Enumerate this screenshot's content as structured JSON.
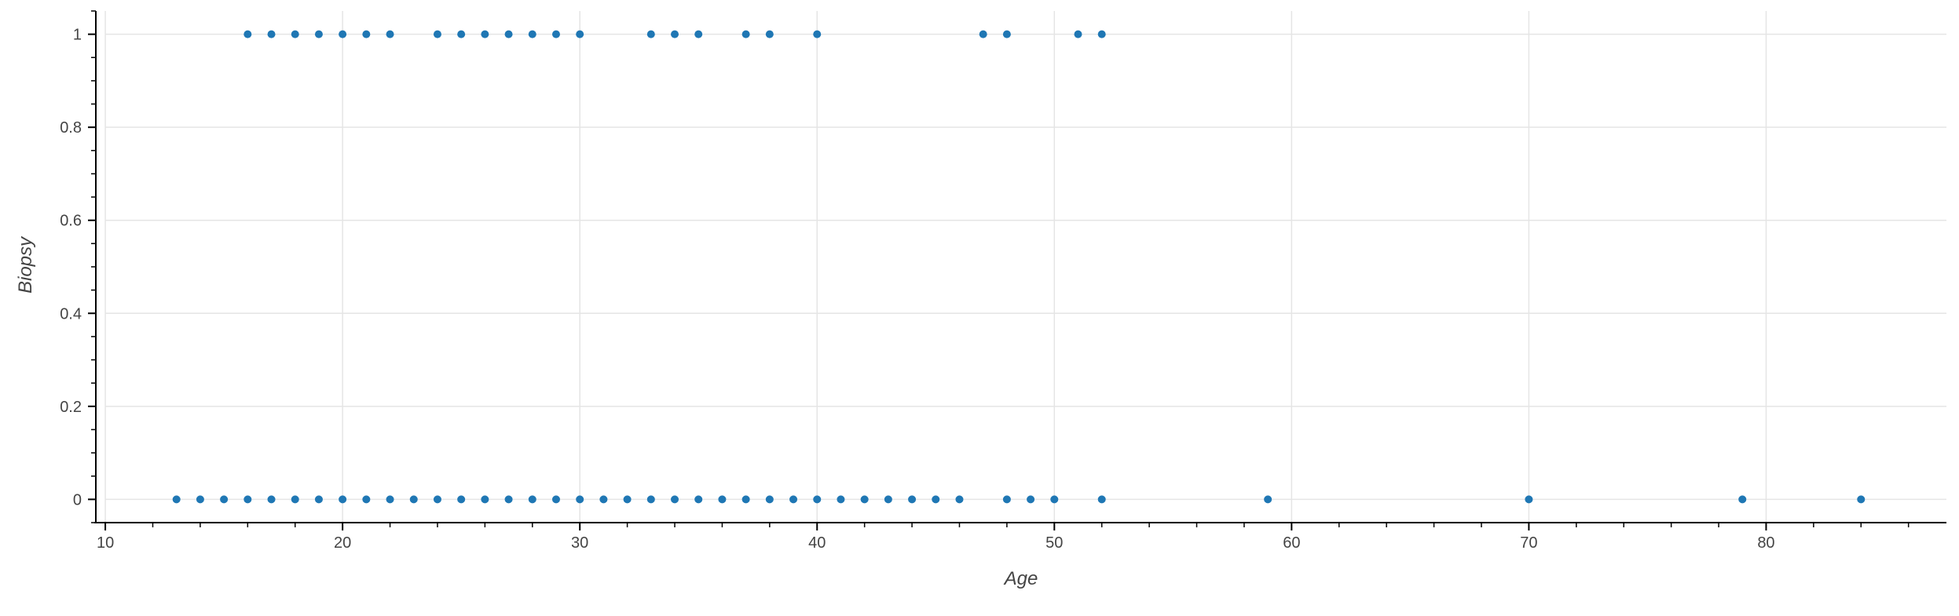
{
  "chart_data": {
    "type": "scatter",
    "title": "",
    "xlabel": "Age",
    "ylabel": "Biopsy",
    "xlim": [
      9.6,
      87.6
    ],
    "ylim": [
      -0.05,
      1.05
    ],
    "x_ticks": [
      10,
      20,
      30,
      40,
      50,
      60,
      70,
      80
    ],
    "x_tick_labels": [
      "10",
      "20",
      "30",
      "40",
      "50",
      "60",
      "70",
      "80"
    ],
    "y_ticks": [
      0,
      0.2,
      0.4,
      0.6,
      0.8,
      1
    ],
    "y_tick_labels": [
      "0",
      "0.2",
      "0.4",
      "0.6",
      "0.8",
      "1"
    ],
    "grid": true,
    "legend": "none",
    "colors": {
      "point": "#1f77b4",
      "grid": "#e5e5e5",
      "axis": "#000000"
    },
    "series": [
      {
        "points": [
          [
            16,
            1
          ],
          [
            17,
            1
          ],
          [
            18,
            1
          ],
          [
            19,
            1
          ],
          [
            20,
            1
          ],
          [
            21,
            1
          ],
          [
            22,
            1
          ],
          [
            24,
            1
          ],
          [
            25,
            1
          ],
          [
            26,
            1
          ],
          [
            27,
            1
          ],
          [
            28,
            1
          ],
          [
            29,
            1
          ],
          [
            30,
            1
          ],
          [
            33,
            1
          ],
          [
            34,
            1
          ],
          [
            35,
            1
          ],
          [
            37,
            1
          ],
          [
            38,
            1
          ],
          [
            40,
            1
          ],
          [
            47,
            1
          ],
          [
            48,
            1
          ],
          [
            51,
            1
          ],
          [
            52,
            1
          ],
          [
            13,
            0
          ],
          [
            14,
            0
          ],
          [
            15,
            0
          ],
          [
            16,
            0
          ],
          [
            17,
            0
          ],
          [
            18,
            0
          ],
          [
            19,
            0
          ],
          [
            20,
            0
          ],
          [
            21,
            0
          ],
          [
            22,
            0
          ],
          [
            23,
            0
          ],
          [
            24,
            0
          ],
          [
            25,
            0
          ],
          [
            26,
            0
          ],
          [
            27,
            0
          ],
          [
            28,
            0
          ],
          [
            29,
            0
          ],
          [
            30,
            0
          ],
          [
            31,
            0
          ],
          [
            32,
            0
          ],
          [
            33,
            0
          ],
          [
            34,
            0
          ],
          [
            35,
            0
          ],
          [
            36,
            0
          ],
          [
            37,
            0
          ],
          [
            38,
            0
          ],
          [
            39,
            0
          ],
          [
            40,
            0
          ],
          [
            41,
            0
          ],
          [
            42,
            0
          ],
          [
            43,
            0
          ],
          [
            44,
            0
          ],
          [
            45,
            0
          ],
          [
            46,
            0
          ],
          [
            48,
            0
          ],
          [
            49,
            0
          ],
          [
            50,
            0
          ],
          [
            52,
            0
          ],
          [
            59,
            0
          ],
          [
            70,
            0
          ],
          [
            79,
            0
          ],
          [
            84,
            0
          ]
        ]
      }
    ]
  }
}
